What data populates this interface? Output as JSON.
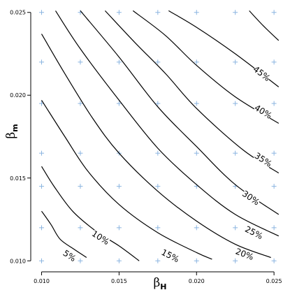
{
  "chart_data": {
    "type": "line",
    "subtype": "contour",
    "title": "",
    "xlabel": {
      "symbol": "β",
      "subscript": "H"
    },
    "ylabel": {
      "symbol": "β",
      "subscript": "m"
    },
    "xlim": [
      0.0093,
      0.0254
    ],
    "ylim": [
      0.0098,
      0.0252
    ],
    "x_ticks": [
      0.01,
      0.015,
      0.02,
      0.025
    ],
    "x_tick_labels": [
      "0.010",
      "0.015",
      "0.020",
      "0.025"
    ],
    "y_ticks": [
      0.01,
      0.015,
      0.02,
      0.025
    ],
    "y_tick_labels": [
      "0.010",
      "0.015",
      "0.020",
      "0.025"
    ],
    "grid_points_x": [
      0.01,
      0.0125,
      0.015,
      0.0175,
      0.02,
      0.0225,
      0.025
    ],
    "grid_points_y": [
      0.01,
      0.012,
      0.0145,
      0.0165,
      0.0195,
      0.022,
      0.025
    ],
    "grid_point_color": "#8ab4e0",
    "contours": [
      {
        "label": "5%",
        "label_at": [
          0.0118,
          0.0103
        ],
        "points": [
          [
            0.01,
            0.013
          ],
          [
            0.0106,
            0.0122
          ],
          [
            0.0112,
            0.0113
          ],
          [
            0.0121,
            0.0107
          ],
          [
            0.0129,
            0.0102
          ]
        ]
      },
      {
        "label": "10%",
        "label_at": [
          0.0138,
          0.0114
        ],
        "points": [
          [
            0.01,
            0.0157
          ],
          [
            0.0108,
            0.0145
          ],
          [
            0.012,
            0.013
          ],
          [
            0.0135,
            0.0118
          ],
          [
            0.015,
            0.0109
          ],
          [
            0.0163,
            0.01
          ]
        ]
      },
      {
        "label": "15%",
        "label_at": [
          0.0183,
          0.0103
        ],
        "points": [
          [
            0.01,
            0.0197
          ],
          [
            0.0115,
            0.0175
          ],
          [
            0.013,
            0.0154
          ],
          [
            0.015,
            0.0134
          ],
          [
            0.0175,
            0.0117
          ],
          [
            0.02,
            0.0105
          ],
          [
            0.021,
            0.0101
          ]
        ]
      },
      {
        "label": "20%",
        "label_at": [
          0.0231,
          0.0104
        ],
        "points": [
          [
            0.01,
            0.0237
          ],
          [
            0.0115,
            0.0213
          ],
          [
            0.0133,
            0.0186
          ],
          [
            0.015,
            0.0165
          ],
          [
            0.0175,
            0.0142
          ],
          [
            0.02,
            0.0124
          ],
          [
            0.0225,
            0.011
          ],
          [
            0.0248,
            0.0102
          ]
        ]
      },
      {
        "label": "25%",
        "label_at": [
          0.0237,
          0.0117
        ],
        "points": [
          [
            0.0109,
            0.0251
          ],
          [
            0.0125,
            0.0228
          ],
          [
            0.015,
            0.0197
          ],
          [
            0.0175,
            0.0168
          ],
          [
            0.02,
            0.0146
          ],
          [
            0.0225,
            0.0128
          ],
          [
            0.0253,
            0.0115
          ]
        ]
      },
      {
        "label": "30%",
        "label_at": [
          0.0235,
          0.0138
        ],
        "points": [
          [
            0.0125,
            0.0251
          ],
          [
            0.015,
            0.0223
          ],
          [
            0.0175,
            0.0193
          ],
          [
            0.02,
            0.0169
          ],
          [
            0.0225,
            0.0146
          ],
          [
            0.0253,
            0.0128
          ]
        ]
      },
      {
        "label": "35%",
        "label_at": [
          0.0243,
          0.0161
        ],
        "points": [
          [
            0.0141,
            0.0251
          ],
          [
            0.016,
            0.0232
          ],
          [
            0.018,
            0.0213
          ],
          [
            0.02,
            0.0192
          ],
          [
            0.023,
            0.0167
          ],
          [
            0.0253,
            0.0153
          ]
        ]
      },
      {
        "label": "40%",
        "label_at": [
          0.0243,
          0.019
        ],
        "points": [
          [
            0.0159,
            0.0251
          ],
          [
            0.018,
            0.0236
          ],
          [
            0.02,
            0.0218
          ],
          [
            0.0225,
            0.0199
          ],
          [
            0.0253,
            0.0183
          ]
        ]
      },
      {
        "label": "45%",
        "label_at": [
          0.0242,
          0.0213
        ],
        "points": [
          [
            0.0182,
            0.0251
          ],
          [
            0.02,
            0.0241
          ],
          [
            0.0225,
            0.0225
          ],
          [
            0.0253,
            0.0205
          ]
        ]
      },
      {
        "label": "",
        "label_at": null,
        "points": [
          [
            0.0234,
            0.0251
          ],
          [
            0.0243,
            0.0242
          ],
          [
            0.0253,
            0.0233
          ]
        ]
      }
    ]
  }
}
